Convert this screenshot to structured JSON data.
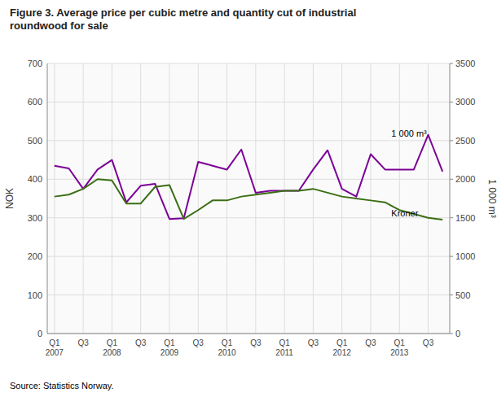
{
  "chart_data": {
    "type": "line",
    "title": "Figure 3. Average price per cubic metre and quantity cut of industrial\nroundwood for sale",
    "ylabel": "NOK",
    "y2label": "1 000 m³",
    "source": "Source: Statistics Norway.",
    "annotations": [
      "1 000 m³",
      "Kroner"
    ],
    "categories": [
      "Q1\n2007",
      null,
      "Q3",
      null,
      "Q1\n2008",
      null,
      "Q3",
      null,
      "Q1\n2009",
      null,
      "Q3",
      null,
      "Q1\n2010",
      null,
      "Q3",
      null,
      "Q1\n2011",
      null,
      "Q3",
      null,
      "Q1\n2012",
      null,
      "Q3",
      null,
      "Q1\n2013",
      null,
      "Q3",
      null
    ],
    "series": [
      {
        "color": "#7b0096",
        "values": [
          435,
          428,
          375,
          425,
          450,
          340,
          383,
          388,
          297,
          299,
          445,
          435,
          425,
          477,
          365,
          370,
          370,
          370,
          425,
          475,
          375,
          355,
          465,
          425,
          425,
          425,
          515,
          420
        ]
      },
      {
        "color": "#3a6e14",
        "axis": "y2",
        "values": [
          1775,
          1800,
          1875,
          2000,
          1985,
          1685,
          1685,
          1900,
          1925,
          1485,
          1600,
          1725,
          1725,
          1775,
          1800,
          1825,
          1850,
          1850,
          1875,
          1825,
          1775,
          1750,
          1725,
          1700,
          1600,
          1550,
          1500,
          1475
        ]
      }
    ],
    "ylim": [
      0,
      700
    ],
    "yticks": [
      0,
      100,
      200,
      300,
      400,
      500,
      600,
      700
    ],
    "y2lim": [
      0,
      3500
    ],
    "y2ticks": [
      0,
      500,
      1000,
      1500,
      2000,
      2500,
      3000,
      3500
    ],
    "grid": true
  }
}
